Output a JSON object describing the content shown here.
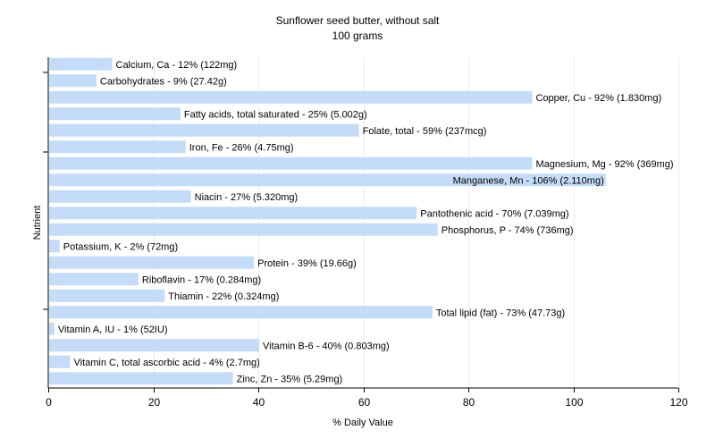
{
  "chart_data": {
    "type": "bar",
    "orientation": "horizontal",
    "title": "Sunflower seed butter, without salt",
    "subtitle": "100 grams",
    "xlabel": "% Daily Value",
    "ylabel": "Nutrient",
    "xlim": [
      0,
      120
    ],
    "xticks": [
      0,
      20,
      40,
      60,
      80,
      100,
      120
    ],
    "grid": true,
    "bar_color": "#c5dcf8",
    "grid_color": "#ebebeb",
    "bars": [
      {
        "name": "Calcium, Ca",
        "value": 12,
        "label": "Calcium, Ca - 12% (122mg)"
      },
      {
        "name": "Carbohydrates",
        "value": 9,
        "label": "Carbohydrates - 9% (27.42g)"
      },
      {
        "name": "Copper, Cu",
        "value": 92,
        "label": "Copper, Cu - 92% (1.830mg)"
      },
      {
        "name": "Fatty acids, total saturated",
        "value": 25,
        "label": "Fatty acids, total saturated - 25% (5.002g)"
      },
      {
        "name": "Folate, total",
        "value": 59,
        "label": "Folate, total - 59% (237mcg)"
      },
      {
        "name": "Iron, Fe",
        "value": 26,
        "label": "Iron, Fe - 26% (4.75mg)"
      },
      {
        "name": "Magnesium, Mg",
        "value": 92,
        "label": "Magnesium, Mg - 92% (369mg)"
      },
      {
        "name": "Manganese, Mn",
        "value": 106,
        "label": "Manganese, Mn - 106% (2.110mg)"
      },
      {
        "name": "Niacin",
        "value": 27,
        "label": "Niacin - 27% (5.320mg)"
      },
      {
        "name": "Pantothenic acid",
        "value": 70,
        "label": "Pantothenic acid - 70% (7.039mg)"
      },
      {
        "name": "Phosphorus, P",
        "value": 74,
        "label": "Phosphorus, P - 74% (736mg)"
      },
      {
        "name": "Potassium, K",
        "value": 2,
        "label": "Potassium, K - 2% (72mg)"
      },
      {
        "name": "Protein",
        "value": 39,
        "label": "Protein - 39% (19.66g)"
      },
      {
        "name": "Riboflavin",
        "value": 17,
        "label": "Riboflavin - 17% (0.284mg)"
      },
      {
        "name": "Thiamin",
        "value": 22,
        "label": "Thiamin - 22% (0.324mg)"
      },
      {
        "name": "Total lipid (fat)",
        "value": 73,
        "label": "Total lipid (fat) - 73% (47.73g)"
      },
      {
        "name": "Vitamin A, IU",
        "value": 1,
        "label": "Vitamin A, IU - 1% (52IU)"
      },
      {
        "name": "Vitamin B-6",
        "value": 40,
        "label": "Vitamin B-6 - 40% (0.803mg)"
      },
      {
        "name": "Vitamin C, total ascorbic acid",
        "value": 4,
        "label": "Vitamin C, total ascorbic acid - 4% (2.7mg)"
      },
      {
        "name": "Zinc, Zn",
        "value": 35,
        "label": "Zinc, Zn - 35% (5.29mg)"
      }
    ]
  }
}
